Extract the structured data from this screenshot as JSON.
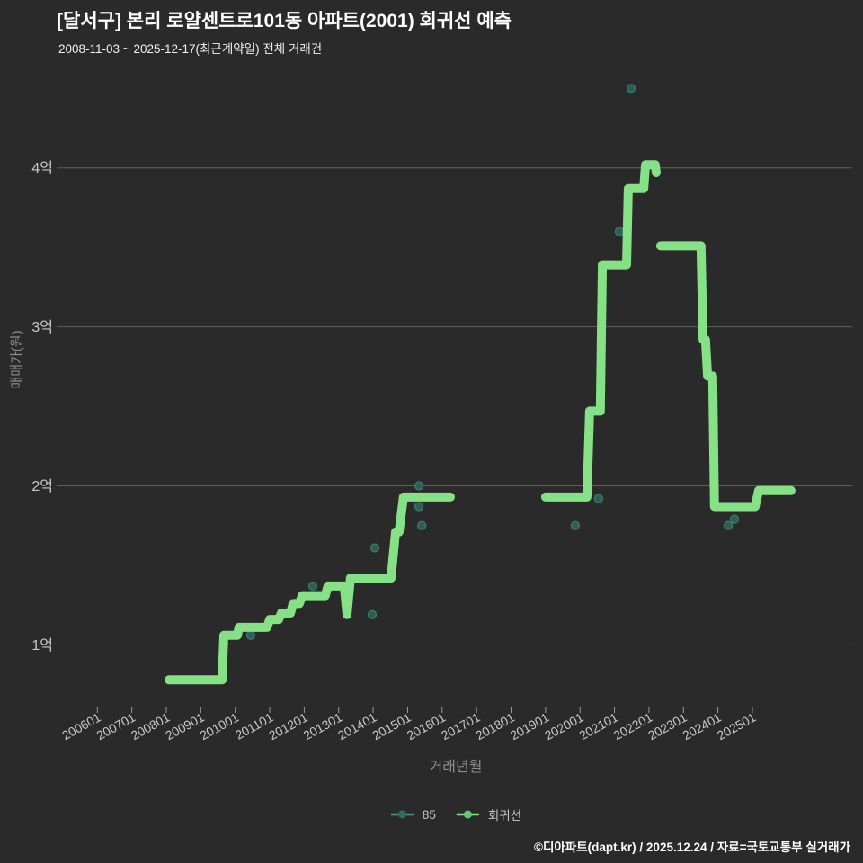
{
  "page": {
    "title": "[달서구] 본리 로얄센트로101동 아파트(2001) 회귀선 예측",
    "subtitle": "2008-11-03 ~ 2025-12-17(최근계약일) 전체 거래건",
    "footer": "©디아파트(dapt.kr) / 2025.12.24 / 자료=국토교통부 실거래가"
  },
  "legend": {
    "items": [
      {
        "label": "85",
        "line_color": "#4a988c",
        "dot_color": "#2f6b60"
      },
      {
        "label": "회귀선",
        "line_color": "#86e086",
        "dot_color": "#63c96f"
      }
    ]
  },
  "colors": {
    "background": "#2a2a2b",
    "grid": "#5e5e5e",
    "tick": "#9a9a9a",
    "tick_label": "#c9c9c9",
    "axis_title": "#8e8e8e",
    "line": "#86e086",
    "scatter_fill": "#2d5f57",
    "scatter_stroke": "#3e7c70",
    "title_text": "#ffffff",
    "footer_text": "#ffffff"
  },
  "chart_data": {
    "type": "line",
    "title": "[달서구] 본리 로얄센트로101동 아파트(2001) 회귀선 예측",
    "subtitle": "2008-11-03 ~ 2025-12-17(최근계약일) 전체 거래건",
    "xlabel": "거래년월",
    "ylabel": "매매가(원)",
    "grid": true,
    "legend_position": "bottom",
    "x_tick_labels": [
      "200601",
      "200701",
      "200801",
      "200901",
      "201001",
      "201101",
      "201201",
      "201301",
      "201401",
      "201501",
      "201601",
      "201701",
      "201801",
      "201901",
      "202001",
      "202101",
      "202201",
      "202301",
      "202401",
      "202501"
    ],
    "y_tick_labels": [
      "1억",
      "2억",
      "3억",
      "4억"
    ],
    "y_tick_values": [
      1,
      2,
      3,
      4
    ],
    "xlim": [
      2004.9,
      2027.9
    ],
    "ylim": [
      0.55,
      4.55
    ],
    "y_unit": "억원",
    "series": [
      {
        "name": "85",
        "type": "scatter",
        "points": [
          [
            2010.45,
            1.06
          ],
          [
            2012.25,
            1.37
          ],
          [
            2013.97,
            1.19
          ],
          [
            2014.05,
            1.61
          ],
          [
            2015.33,
            2.0
          ],
          [
            2015.33,
            1.87
          ],
          [
            2015.41,
            1.75
          ],
          [
            2019.86,
            1.75
          ],
          [
            2020.54,
            1.92
          ],
          [
            2021.14,
            3.6
          ],
          [
            2021.48,
            4.5
          ],
          [
            2024.3,
            1.75
          ],
          [
            2024.48,
            1.79
          ]
        ]
      },
      {
        "name": "회귀선",
        "type": "step-line",
        "segments": [
          [
            [
              2008.08,
              0.78
            ],
            [
              2009.62,
              0.78
            ],
            [
              2009.67,
              1.06
            ],
            [
              2010.06,
              1.06
            ],
            [
              2010.11,
              1.11
            ],
            [
              2010.92,
              1.11
            ],
            [
              2011.0,
              1.16
            ],
            [
              2011.26,
              1.16
            ],
            [
              2011.34,
              1.2
            ],
            [
              2011.6,
              1.2
            ],
            [
              2011.68,
              1.26
            ],
            [
              2011.86,
              1.26
            ],
            [
              2011.94,
              1.31
            ],
            [
              2012.61,
              1.31
            ],
            [
              2012.69,
              1.37
            ],
            [
              2013.16,
              1.37
            ],
            [
              2013.24,
              1.19
            ],
            [
              2013.34,
              1.42
            ],
            [
              2014.52,
              1.42
            ],
            [
              2014.65,
              1.71
            ],
            [
              2014.75,
              1.71
            ],
            [
              2014.88,
              1.93
            ],
            [
              2016.24,
              1.93
            ]
          ],
          [
            [
              2019.0,
              1.93
            ],
            [
              2020.2,
              1.93
            ],
            [
              2020.28,
              2.47
            ],
            [
              2020.59,
              2.47
            ],
            [
              2020.65,
              3.39
            ],
            [
              2021.35,
              3.39
            ],
            [
              2021.4,
              3.87
            ],
            [
              2021.85,
              3.87
            ],
            [
              2021.9,
              4.02
            ],
            [
              2022.18,
              4.02
            ],
            [
              2022.21,
              3.97
            ]
          ],
          [
            [
              2022.34,
              3.51
            ],
            [
              2023.51,
              3.51
            ],
            [
              2023.57,
              2.92
            ],
            [
              2023.64,
              2.92
            ],
            [
              2023.7,
              2.69
            ],
            [
              2023.85,
              2.69
            ],
            [
              2023.9,
              1.87
            ],
            [
              2025.08,
              1.87
            ],
            [
              2025.18,
              1.97
            ],
            [
              2026.12,
              1.97
            ]
          ]
        ]
      }
    ]
  }
}
